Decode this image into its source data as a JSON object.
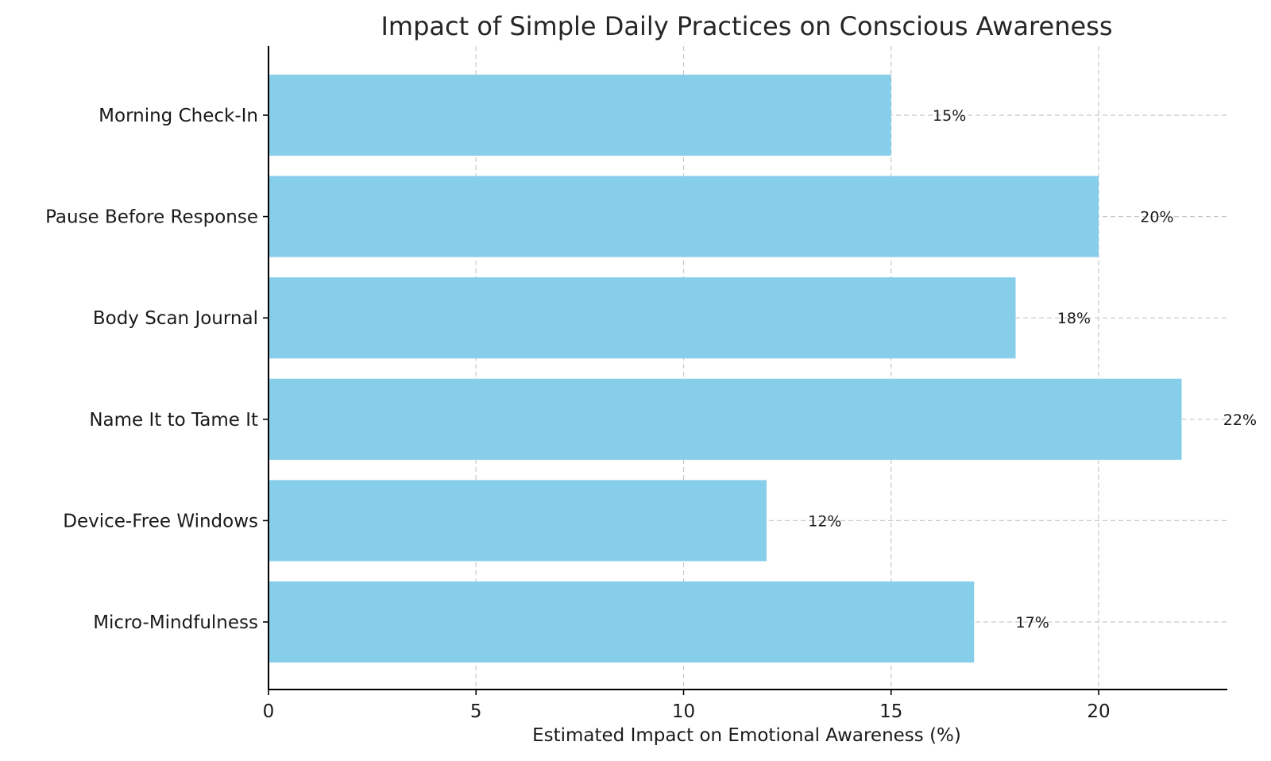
{
  "chart_data": {
    "type": "bar",
    "orientation": "horizontal",
    "title": "Impact of Simple Daily Practices on Conscious Awareness",
    "xlabel": "Estimated Impact on Emotional Awareness (%)",
    "ylabel": "",
    "categories": [
      "Morning Check-In",
      "Pause Before Response",
      "Body Scan Journal",
      "Name It to Tame It",
      "Device-Free Windows",
      "Micro-Mindfulness"
    ],
    "values": [
      15,
      20,
      18,
      22,
      12,
      17
    ],
    "value_labels": [
      "15%",
      "20%",
      "18%",
      "22%",
      "12%",
      "17%"
    ],
    "xlim": [
      0,
      23.1
    ],
    "xticks": [
      0,
      5,
      10,
      15,
      20
    ],
    "xtick_labels": [
      "0",
      "5",
      "10",
      "15",
      "20"
    ],
    "grid": true,
    "bar_color": "#87CEEB"
  }
}
